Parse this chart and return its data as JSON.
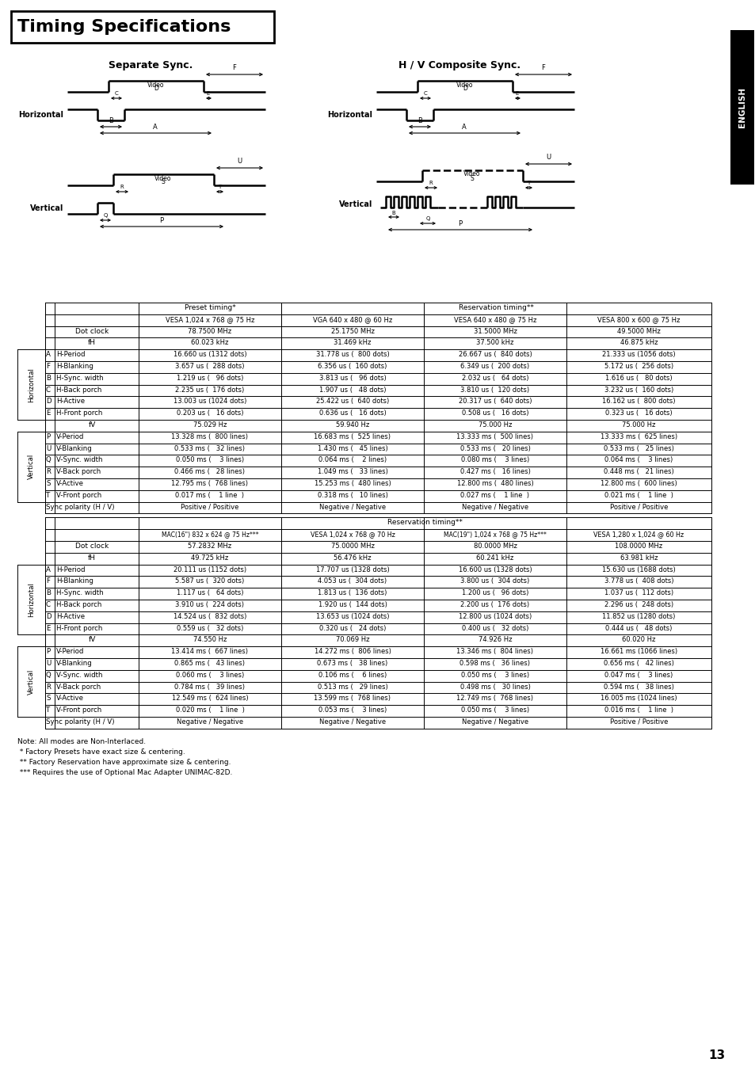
{
  "title": "Timing Specifications",
  "subtitle_left": "Separate Sync.",
  "subtitle_right": "H / V Composite Sync.",
  "page_number": "13",
  "sidebar_text": "ENGLISH",
  "table1_rows": [
    [
      "",
      "Dot clock",
      "78.7500 MHz",
      "25.1750 MHz",
      "31.5000 MHz",
      "49.5000 MHz"
    ],
    [
      "",
      "fH",
      "60.023 kHz",
      "31.469 kHz",
      "37.500 kHz",
      "46.875 kHz"
    ],
    [
      "A",
      "H-Period",
      "16.660 us (1312 dots)",
      "31.778 us (  800 dots)",
      "26.667 us (  840 dots)",
      "21.333 us (1056 dots)"
    ],
    [
      "F",
      "H-Blanking",
      "3.657 us (  288 dots)",
      "6.356 us (  160 dots)",
      "6.349 us (  200 dots)",
      "5.172 us (  256 dots)"
    ],
    [
      "B",
      "H-Sync. width",
      "1.219 us (   96 dots)",
      "3.813 us (   96 dots)",
      "2.032 us (   64 dots)",
      "1.616 us (   80 dots)"
    ],
    [
      "C",
      "H-Back porch",
      "2.235 us (  176 dots)",
      "1.907 us (   48 dots)",
      "3.810 us (  120 dots)",
      "3.232 us (  160 dots)"
    ],
    [
      "D",
      "H-Active",
      "13.003 us (1024 dots)",
      "25.422 us (  640 dots)",
      "20.317 us (  640 dots)",
      "16.162 us (  800 dots)"
    ],
    [
      "E",
      "H-Front porch",
      "0.203 us (   16 dots)",
      "0.636 us (   16 dots)",
      "0.508 us (   16 dots)",
      "0.323 us (   16 dots)"
    ],
    [
      "",
      "fV",
      "75.029 Hz",
      "59.940 Hz",
      "75.000 Hz",
      "75.000 Hz"
    ],
    [
      "P",
      "V-Period",
      "13.328 ms (  800 lines)",
      "16.683 ms (  525 lines)",
      "13.333 ms (  500 lines)",
      "13.333 ms (  625 lines)"
    ],
    [
      "U",
      "V-Blanking",
      "0.533 ms (   32 lines)",
      "1.430 ms (   45 lines)",
      "0.533 ms (   20 lines)",
      "0.533 ms (   25 lines)"
    ],
    [
      "Q",
      "V-Sync. width",
      "0.050 ms (    3 lines)",
      "0.064 ms (    2 lines)",
      "0.080 ms (    3 lines)",
      "0.064 ms (    3 lines)"
    ],
    [
      "R",
      "V-Back porch",
      "0.466 ms (   28 lines)",
      "1.049 ms (   33 lines)",
      "0.427 ms (   16 lines)",
      "0.448 ms (   21 lines)"
    ],
    [
      "S",
      "V-Active",
      "12.795 ms (  768 lines)",
      "15.253 ms (  480 lines)",
      "12.800 ms (  480 lines)",
      "12.800 ms (  600 lines)"
    ],
    [
      "T",
      "V-Front porch",
      "0.017 ms (    1 line  )",
      "0.318 ms (   10 lines)",
      "0.027 ms (    1 line  )",
      "0.021 ms (    1 line  )"
    ],
    [
      "",
      "Sync polarity (H / V)",
      "Positive / Positive",
      "Negative / Negative",
      "Negative / Negative",
      "Positive / Positive"
    ]
  ],
  "table1_hdr1_preset": "Preset timing*",
  "table1_hdr1_res": "Reservation timing**",
  "table1_hdr2": [
    "VESA 1,024 x 768 @ 75 Hz",
    "VGA 640 x 480 @ 60 Hz",
    "VESA 640 x 480 @ 75 Hz",
    "VESA 800 x 600 @ 75 Hz"
  ],
  "table2_rows": [
    [
      "",
      "Dot clock",
      "57.2832 MHz",
      "75.0000 MHz",
      "80.0000 MHz",
      "108.0000 MHz"
    ],
    [
      "",
      "fH",
      "49.725 kHz",
      "56.476 kHz",
      "60.241 kHz",
      "63.981 kHz"
    ],
    [
      "A",
      "H-Period",
      "20.111 us (1152 dots)",
      "17.707 us (1328 dots)",
      "16.600 us (1328 dots)",
      "15.630 us (1688 dots)"
    ],
    [
      "F",
      "H-Blanking",
      "5.587 us (  320 dots)",
      "4.053 us (  304 dots)",
      "3.800 us (  304 dots)",
      "3.778 us (  408 dots)"
    ],
    [
      "B",
      "H-Sync. width",
      "1.117 us (   64 dots)",
      "1.813 us (  136 dots)",
      "1.200 us (   96 dots)",
      "1.037 us (  112 dots)"
    ],
    [
      "C",
      "H-Back porch",
      "3.910 us (  224 dots)",
      "1.920 us (  144 dots)",
      "2.200 us (  176 dots)",
      "2.296 us (  248 dots)"
    ],
    [
      "D",
      "H-Active",
      "14.524 us (  832 dots)",
      "13.653 us (1024 dots)",
      "12.800 us (1024 dots)",
      "11.852 us (1280 dots)"
    ],
    [
      "E",
      "H-Front porch",
      "0.559 us (   32 dots)",
      "0.320 us (   24 dots)",
      "0.400 us (   32 dots)",
      "0.444 us (   48 dots)"
    ],
    [
      "",
      "fV",
      "74.550 Hz",
      "70.069 Hz",
      "74.926 Hz",
      "60.020 Hz"
    ],
    [
      "P",
      "V-Period",
      "13.414 ms (  667 lines)",
      "14.272 ms (  806 lines)",
      "13.346 ms (  804 lines)",
      "16.661 ms (1066 lines)"
    ],
    [
      "U",
      "V-Blanking",
      "0.865 ms (   43 lines)",
      "0.673 ms (   38 lines)",
      "0.598 ms (   36 lines)",
      "0.656 ms (   42 lines)"
    ],
    [
      "Q",
      "V-Sync. width",
      "0.060 ms (    3 lines)",
      "0.106 ms (    6 lines)",
      "0.050 ms (    3 lines)",
      "0.047 ms (    3 lines)"
    ],
    [
      "R",
      "V-Back porch",
      "0.784 ms (   39 lines)",
      "0.513 ms (   29 lines)",
      "0.498 ms (   30 lines)",
      "0.594 ms (   38 lines)"
    ],
    [
      "S",
      "V-Active",
      "12.549 ms (  624 lines)",
      "13.599 ms (  768 lines)",
      "12.749 ms (  768 lines)",
      "16.005 ms (1024 lines)"
    ],
    [
      "T",
      "V-Front porch",
      "0.020 ms (    1 line  )",
      "0.053 ms (    3 lines)",
      "0.050 ms (    3 lines)",
      "0.016 ms (    1 line  )"
    ],
    [
      "",
      "Sync polarity (H / V)",
      "Negative / Negative",
      "Negative / Negative",
      "Negative / Negative",
      "Positive / Positive"
    ]
  ],
  "table2_hdr1_res": "Reservation timing**",
  "table2_hdr2": [
    "MAC(16\") 832 x 624 @ 75 Hz***",
    "VESA 1,024 x 768 @ 70 Hz",
    "MAC(19\") 1,024 x 768 @ 75 Hz***",
    "VESA 1,280 x 1,024 @ 60 Hz"
  ],
  "notes": [
    "Note: All modes are Non-Interlaced.",
    " * Factory Presets have exact size & centering.",
    " ** Factory Reservation have approximate size & centering.",
    " *** Requires the use of Optional Mac Adapter UNIMAC-82D."
  ]
}
